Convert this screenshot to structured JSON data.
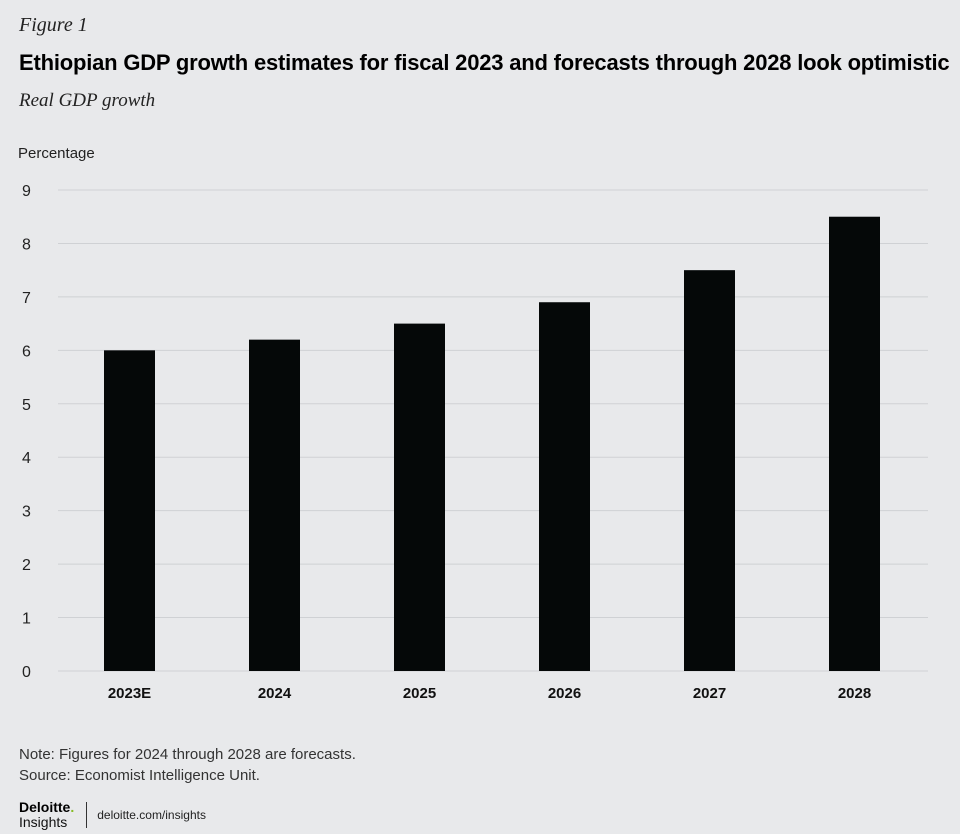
{
  "figure_label": "Figure 1",
  "title": "Ethiopian GDP growth estimates for fiscal 2023 and forecasts through 2028 look optimistic",
  "subtitle": "Real GDP growth",
  "chart_data": {
    "type": "bar",
    "ylabel": "Percentage",
    "categories": [
      "2023E",
      "2024",
      "2025",
      "2026",
      "2027",
      "2028"
    ],
    "values": [
      6.0,
      6.2,
      6.5,
      6.9,
      7.5,
      8.5
    ],
    "ylim": [
      0,
      9
    ],
    "yticks": [
      0,
      1,
      2,
      3,
      4,
      5,
      6,
      7,
      8,
      9
    ],
    "grid": true,
    "colors": {
      "bar": "#050808",
      "grid": "#cfd1d4",
      "tick_text": "#222222"
    }
  },
  "note": "Note: Figures for 2024 through 2028 are forecasts.",
  "source": "Source: Economist Intelligence Unit.",
  "footer": {
    "logo_word": "Deloitte",
    "logo_dot": ".",
    "logo_sub": "Insights",
    "url": "deloitte.com/insights"
  }
}
